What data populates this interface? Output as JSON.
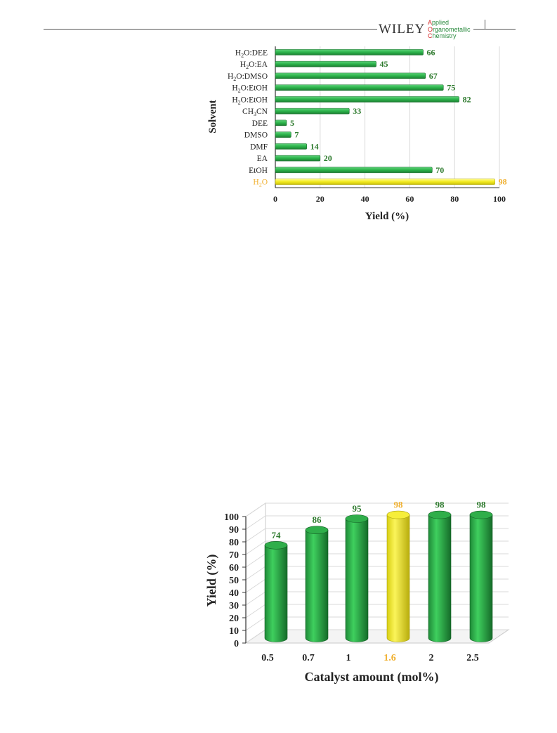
{
  "header": {
    "publisher": "WILEY",
    "journal_lines": [
      {
        "cap": "A",
        "rest": "pplied"
      },
      {
        "cap": "O",
        "rest": "rganometallic"
      },
      {
        "cap": "C",
        "rest": "hemistry"
      }
    ]
  },
  "colors": {
    "bar_green": "#2bb34a",
    "bar_green_dark": "#1e7d33",
    "highlight_yellow": "#f2ea1e",
    "label_green": "#2d7a2d",
    "highlight_label": "#f0b030",
    "grid": "#d9d9d9"
  },
  "chart_data": [
    {
      "type": "bar",
      "orientation": "horizontal",
      "xlabel": "Yield (%)",
      "ylabel": "Solvent",
      "xlim": [
        0,
        100
      ],
      "xticks": [
        0,
        20,
        40,
        60,
        80,
        100
      ],
      "grid": true,
      "categories": [
        {
          "label": "H₂O:DEE",
          "base": "H",
          "sub": "2",
          "rest": "O:DEE",
          "value": 66,
          "highlight": false
        },
        {
          "label": "H₂O:EA",
          "base": "H",
          "sub": "2",
          "rest": "O:EA",
          "value": 45,
          "highlight": false
        },
        {
          "label": "H₂O:DMSO",
          "base": "H",
          "sub": "2",
          "rest": "O:DMSO",
          "value": 67,
          "highlight": false
        },
        {
          "label": "H₂O:EtOH",
          "base": "H",
          "sub": "2",
          "rest": "O:EtOH",
          "value": 75,
          "highlight": false
        },
        {
          "label": "H₂O:EtOH",
          "base": "H",
          "sub": "2",
          "rest": "O:EtOH",
          "value": 82,
          "highlight": false
        },
        {
          "label": "CH₃CN",
          "base": "CH",
          "sub": "3",
          "rest": "CN",
          "value": 33,
          "highlight": false
        },
        {
          "label": "DEE",
          "base": "DEE",
          "sub": "",
          "rest": "",
          "value": 5,
          "highlight": false
        },
        {
          "label": "DMSO",
          "base": "DMSO",
          "sub": "",
          "rest": "",
          "value": 7,
          "highlight": false
        },
        {
          "label": "DMF",
          "base": "DMF",
          "sub": "",
          "rest": "",
          "value": 14,
          "highlight": false
        },
        {
          "label": "EA",
          "base": "EA",
          "sub": "",
          "rest": "",
          "value": 20,
          "highlight": false
        },
        {
          "label": "EtOH",
          "base": "EtOH",
          "sub": "",
          "rest": "",
          "value": 70,
          "highlight": false
        },
        {
          "label": "H₂O",
          "base": "H",
          "sub": "2",
          "rest": "O",
          "value": 98,
          "highlight": true
        }
      ]
    },
    {
      "type": "bar",
      "style": "3d-cylinder",
      "xlabel": "Catalyst amount (mol%)",
      "ylabel": "Yield (%)",
      "ylim": [
        0,
        100
      ],
      "yticks": [
        0,
        10,
        20,
        30,
        40,
        50,
        60,
        70,
        80,
        90,
        100
      ],
      "grid": true,
      "categories": [
        "0.5",
        "0.7",
        "1",
        "1.6",
        "2",
        "2.5"
      ],
      "values": [
        74,
        86,
        95,
        98,
        98,
        98
      ],
      "highlight_index": 3
    }
  ]
}
